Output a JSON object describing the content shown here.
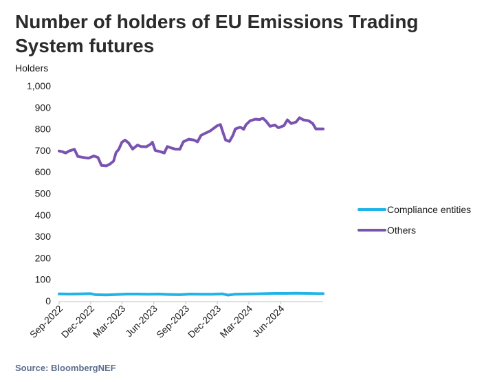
{
  "title": "Number of holders of EU Emissions Trading System futures",
  "source": "Source: BloombergNEF",
  "chart_data": {
    "type": "line",
    "title": "Number of holders of EU Emissions Trading System futures",
    "ylabel": "Holders",
    "xlabel": "",
    "ylim": [
      0,
      1000
    ],
    "yticks": [
      0,
      100,
      200,
      300,
      400,
      500,
      600,
      700,
      800,
      900,
      1000
    ],
    "ytick_labels": [
      "0",
      "100",
      "200",
      "300",
      "400",
      "500",
      "600",
      "700",
      "800",
      "900",
      "1,000"
    ],
    "xlim": [
      "2022-09-01",
      "2024-10-01"
    ],
    "xticks": [
      "2022-09-01",
      "2022-12-01",
      "2023-03-01",
      "2023-06-01",
      "2023-09-01",
      "2023-12-01",
      "2024-03-01",
      "2024-06-01"
    ],
    "xtick_labels": [
      "Sep-2022",
      "Dec-2022",
      "Mar-2023",
      "Jun-2023",
      "Sep-2023",
      "Dec-2023",
      "Mar-2024",
      "Jun-2024"
    ],
    "grid": false,
    "legend": "right",
    "series": [
      {
        "name": "Compliance entities",
        "color": "#1fb3e8",
        "points": [
          [
            "2022-09-01",
            33
          ],
          [
            "2022-10-01",
            32
          ],
          [
            "2022-11-01",
            33
          ],
          [
            "2022-12-01",
            34
          ],
          [
            "2022-12-15",
            29
          ],
          [
            "2023-01-15",
            28
          ],
          [
            "2023-02-15",
            30
          ],
          [
            "2023-03-15",
            32
          ],
          [
            "2023-04-15",
            32
          ],
          [
            "2023-05-15",
            31
          ],
          [
            "2023-06-15",
            32
          ],
          [
            "2023-07-15",
            30
          ],
          [
            "2023-08-15",
            29
          ],
          [
            "2023-09-15",
            32
          ],
          [
            "2023-10-15",
            31
          ],
          [
            "2023-11-15",
            31
          ],
          [
            "2023-12-15",
            33
          ],
          [
            "2024-01-01",
            27
          ],
          [
            "2024-01-20",
            31
          ],
          [
            "2024-02-15",
            32
          ],
          [
            "2024-03-15",
            33
          ],
          [
            "2024-04-15",
            34
          ],
          [
            "2024-05-15",
            35
          ],
          [
            "2024-06-15",
            35
          ],
          [
            "2024-07-15",
            36
          ],
          [
            "2024-08-15",
            35
          ],
          [
            "2024-09-15",
            34
          ],
          [
            "2024-10-01",
            34
          ]
        ]
      },
      {
        "name": "Others",
        "color": "#7a52b0",
        "points": [
          [
            "2022-09-01",
            697
          ],
          [
            "2022-09-10",
            694
          ],
          [
            "2022-09-20",
            688
          ],
          [
            "2022-10-01",
            698
          ],
          [
            "2022-10-15",
            705
          ],
          [
            "2022-10-25",
            672
          ],
          [
            "2022-11-10",
            667
          ],
          [
            "2022-11-25",
            664
          ],
          [
            "2022-12-10",
            674
          ],
          [
            "2022-12-22",
            667
          ],
          [
            "2023-01-01",
            630
          ],
          [
            "2023-01-15",
            628
          ],
          [
            "2023-01-25",
            636
          ],
          [
            "2023-02-05",
            650
          ],
          [
            "2023-02-12",
            690
          ],
          [
            "2023-02-20",
            705
          ],
          [
            "2023-03-01",
            738
          ],
          [
            "2023-03-10",
            748
          ],
          [
            "2023-03-20",
            735
          ],
          [
            "2023-04-01",
            706
          ],
          [
            "2023-04-15",
            725
          ],
          [
            "2023-04-25",
            718
          ],
          [
            "2023-05-10",
            717
          ],
          [
            "2023-05-22",
            728
          ],
          [
            "2023-05-28",
            738
          ],
          [
            "2023-06-05",
            700
          ],
          [
            "2023-06-20",
            694
          ],
          [
            "2023-07-01",
            688
          ],
          [
            "2023-07-10",
            718
          ],
          [
            "2023-07-20",
            712
          ],
          [
            "2023-08-01",
            706
          ],
          [
            "2023-08-15",
            705
          ],
          [
            "2023-08-25",
            740
          ],
          [
            "2023-09-10",
            752
          ],
          [
            "2023-09-25",
            748
          ],
          [
            "2023-10-05",
            740
          ],
          [
            "2023-10-15",
            770
          ],
          [
            "2023-10-25",
            778
          ],
          [
            "2023-11-10",
            790
          ],
          [
            "2023-11-25",
            808
          ],
          [
            "2023-12-01",
            815
          ],
          [
            "2023-12-10",
            820
          ],
          [
            "2023-12-18",
            780
          ],
          [
            "2023-12-25",
            748
          ],
          [
            "2024-01-05",
            742
          ],
          [
            "2024-01-15",
            770
          ],
          [
            "2024-01-22",
            800
          ],
          [
            "2024-02-05",
            808
          ],
          [
            "2024-02-15",
            798
          ],
          [
            "2024-02-22",
            820
          ],
          [
            "2024-03-05",
            838
          ],
          [
            "2024-03-20",
            845
          ],
          [
            "2024-04-01",
            843
          ],
          [
            "2024-04-10",
            850
          ],
          [
            "2024-04-20",
            835
          ],
          [
            "2024-05-01",
            812
          ],
          [
            "2024-05-15",
            818
          ],
          [
            "2024-05-25",
            805
          ],
          [
            "2024-06-10",
            815
          ],
          [
            "2024-06-20",
            842
          ],
          [
            "2024-07-01",
            825
          ],
          [
            "2024-07-15",
            832
          ],
          [
            "2024-07-25",
            852
          ],
          [
            "2024-08-05",
            842
          ],
          [
            "2024-08-20",
            838
          ],
          [
            "2024-09-01",
            825
          ],
          [
            "2024-09-10",
            800
          ],
          [
            "2024-10-01",
            800
          ]
        ]
      }
    ]
  }
}
